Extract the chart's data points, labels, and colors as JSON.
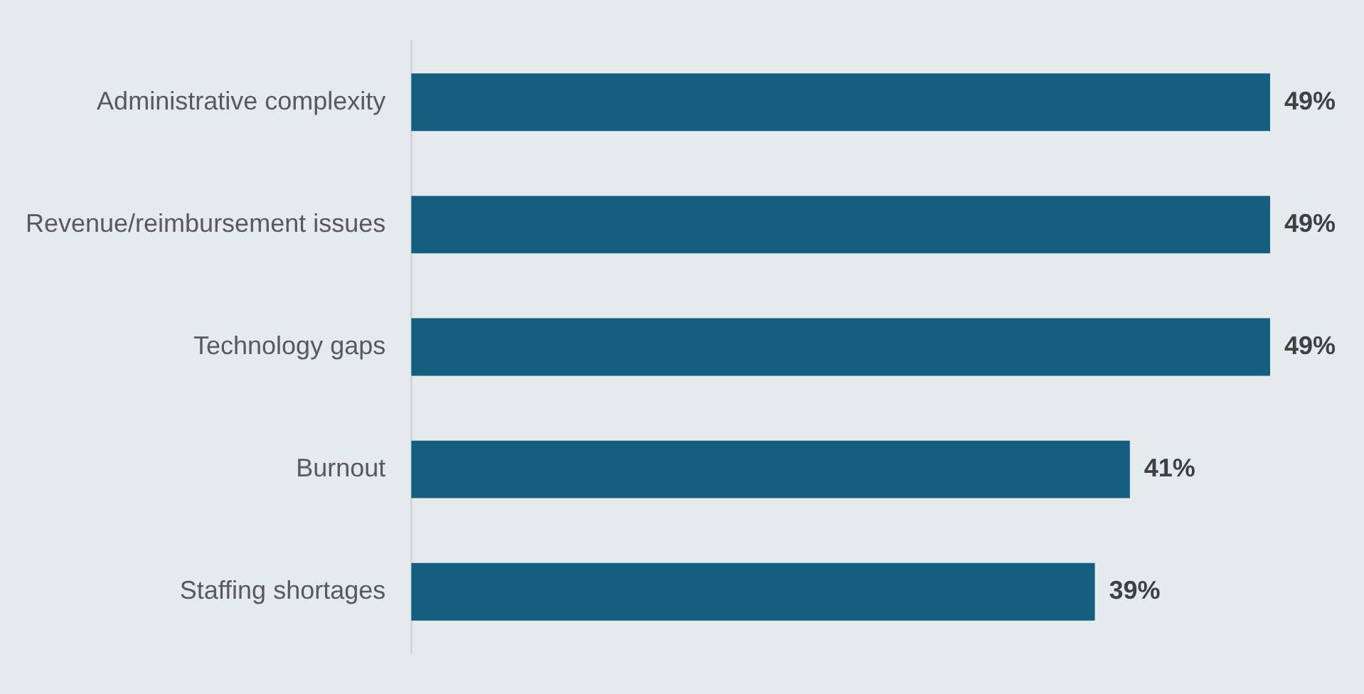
{
  "chart_data": {
    "type": "bar",
    "orientation": "horizontal",
    "categories": [
      "Administrative complexity",
      "Revenue/reimbursement issues",
      "Technology gaps",
      "Burnout",
      "Staffing shortages"
    ],
    "values": [
      49,
      49,
      49,
      41,
      39
    ],
    "value_labels": [
      "49%",
      "49%",
      "49%",
      "41%",
      "39%"
    ],
    "color": "#165e80",
    "tick_labels": "y",
    "grid": false,
    "legend": false
  }
}
